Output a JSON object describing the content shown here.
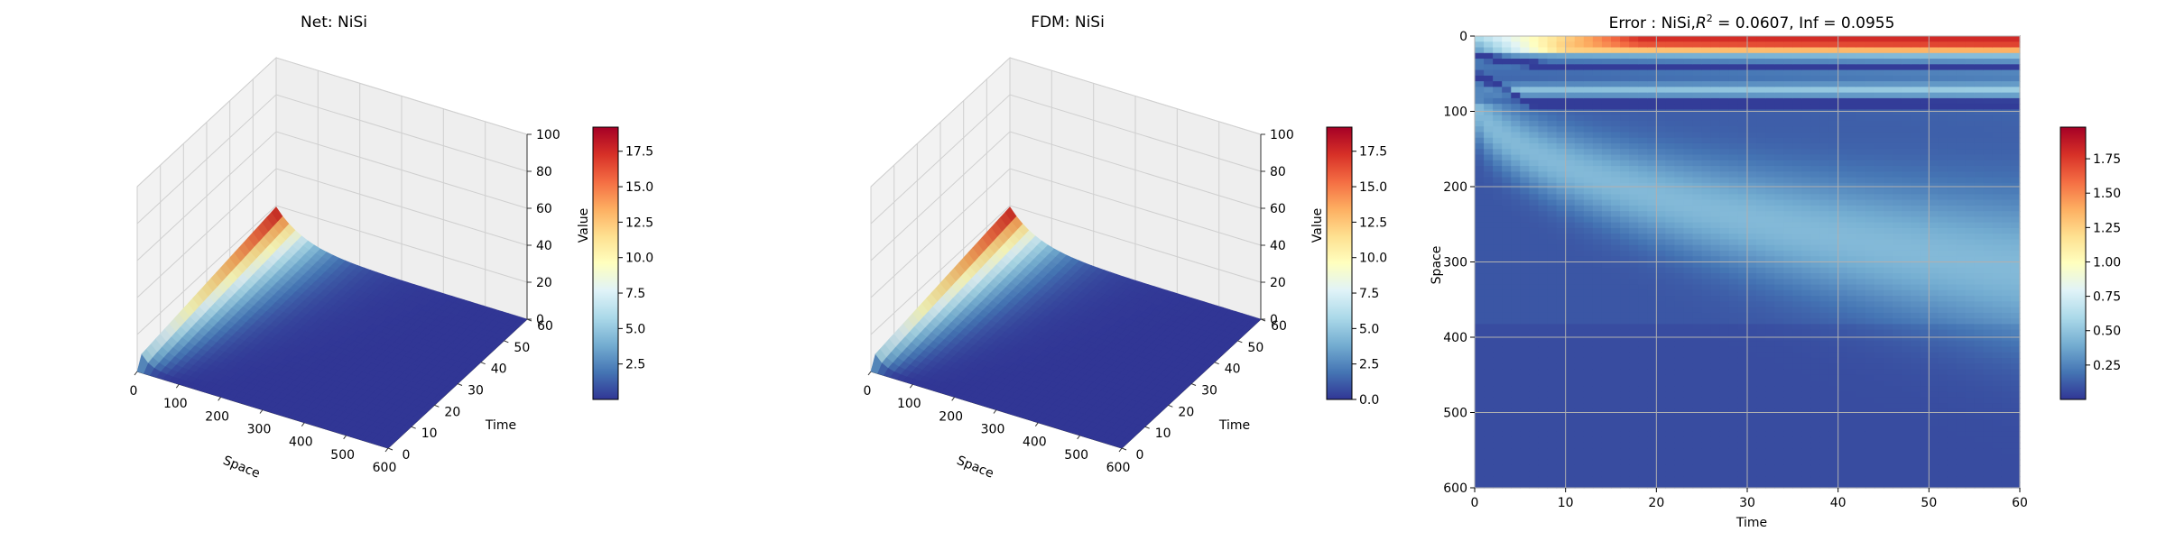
{
  "chart_data": [
    {
      "type": "surface3d",
      "title": "Net: NiSi",
      "xlabel": "Space",
      "ylabel": "Time",
      "zlabel": "Value",
      "xlim": [
        0,
        600
      ],
      "ylim": [
        0,
        60
      ],
      "zlim": [
        0,
        100
      ],
      "xticks": [
        "0",
        "100",
        "200",
        "300",
        "400",
        "500",
        "600"
      ],
      "yticks": [
        "0",
        "10",
        "20",
        "30",
        "40",
        "50",
        "60"
      ],
      "zticks": [
        "0",
        "20",
        "40",
        "60",
        "80",
        "100"
      ],
      "colormap": "RdYlBu_r",
      "colorbar": {
        "min": 0,
        "max": 19.2,
        "ticks": [
          "2.5",
          "5.0",
          "7.5",
          "10.0",
          "12.5",
          "15.0",
          "17.5"
        ]
      },
      "peak_value": 19.2
    },
    {
      "type": "surface3d",
      "title": "FDM: NiSi",
      "xlabel": "Space",
      "ylabel": "Time",
      "zlabel": "Value",
      "xlim": [
        0,
        600
      ],
      "ylim": [
        0,
        60
      ],
      "zlim": [
        0,
        100
      ],
      "xticks": [
        "0",
        "100",
        "200",
        "300",
        "400",
        "500",
        "600"
      ],
      "yticks": [
        "0",
        "10",
        "20",
        "30",
        "40",
        "50",
        "60"
      ],
      "zticks": [
        "0",
        "20",
        "40",
        "60",
        "80",
        "100"
      ],
      "colormap": "RdYlBu_r",
      "colorbar": {
        "min": 0,
        "max": 19.2,
        "ticks": [
          "0.0",
          "2.5",
          "5.0",
          "7.5",
          "10.0",
          "12.5",
          "15.0",
          "17.5"
        ]
      },
      "peak_value": 19.2
    },
    {
      "type": "heatmap",
      "title_prefix": "Error : NiSi,",
      "title_r2": "R",
      "title_r2_sup": "2",
      "title_suffix": " = 0.0607, Inf = 0.0955",
      "xlabel": "Time",
      "ylabel": "Space",
      "xlim": [
        0,
        60
      ],
      "ylim": [
        600,
        0
      ],
      "xticks": [
        "0",
        "10",
        "20",
        "30",
        "40",
        "50",
        "60"
      ],
      "yticks": [
        "0",
        "100",
        "200",
        "300",
        "400",
        "500",
        "600"
      ],
      "grid": true,
      "colormap": "RdYlBu_r",
      "colorbar": {
        "min": 0,
        "max": 1.98,
        "ticks": [
          "0.25",
          "0.50",
          "0.75",
          "1.00",
          "1.25",
          "1.50",
          "1.75"
        ]
      }
    }
  ]
}
